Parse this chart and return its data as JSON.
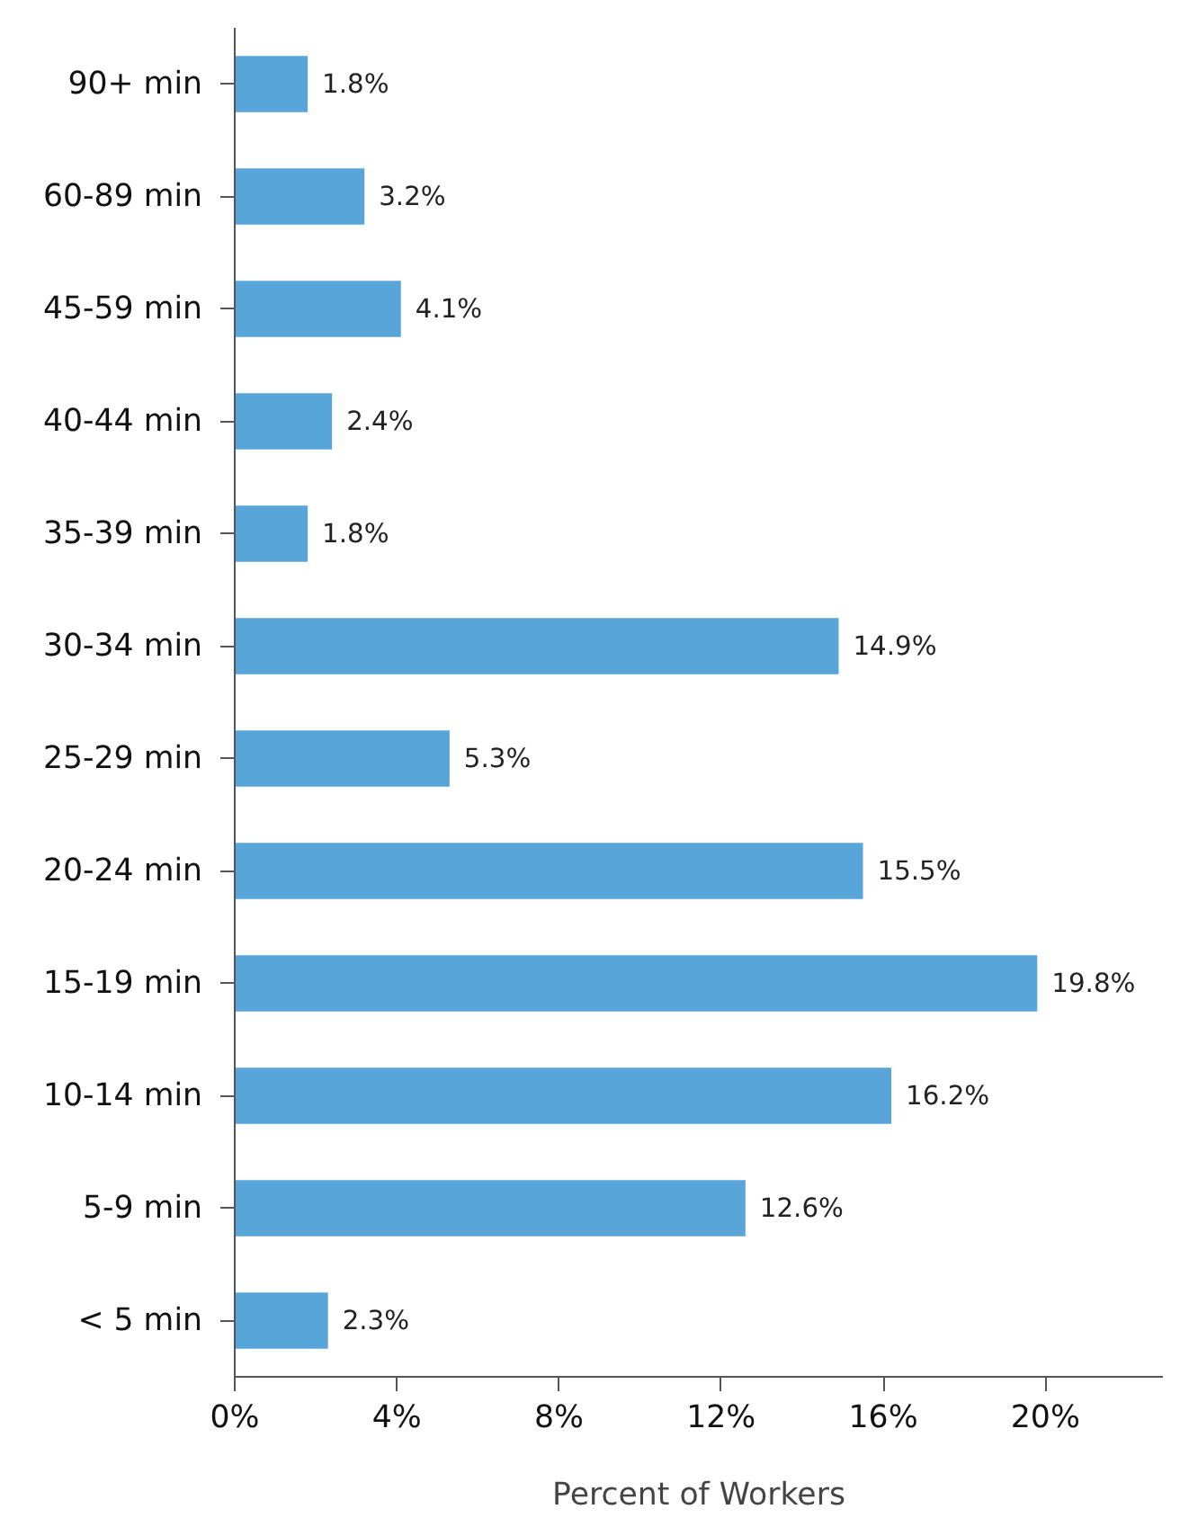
{
  "chart_data": {
    "type": "bar",
    "orientation": "horizontal",
    "xlabel": "Percent of Workers",
    "categories": [
      "90+ min",
      "60-89 min",
      "45-59 min",
      "40-44 min",
      "35-39 min",
      "30-34 min",
      "25-29 min",
      "20-24 min",
      "15-19 min",
      "10-14 min",
      "5-9 min",
      "< 5 min"
    ],
    "values": [
      1.8,
      3.2,
      4.1,
      2.4,
      1.8,
      14.9,
      5.3,
      15.5,
      19.8,
      16.2,
      12.6,
      2.3
    ],
    "value_labels": [
      "1.8%",
      "3.2%",
      "4.1%",
      "2.4%",
      "1.8%",
      "14.9%",
      "5.3%",
      "15.5%",
      "19.8%",
      "16.2%",
      "12.6%",
      "2.3%"
    ],
    "color": "#58a5da",
    "xlim": [
      0,
      22.9
    ],
    "xticks": [
      {
        "value": 0,
        "label": "0%"
      },
      {
        "value": 4,
        "label": "4%"
      },
      {
        "value": 8,
        "label": "8%"
      },
      {
        "value": 12,
        "label": "12%"
      },
      {
        "value": 16,
        "label": "16%"
      },
      {
        "value": 20,
        "label": "20%"
      }
    ],
    "grid": false
  }
}
